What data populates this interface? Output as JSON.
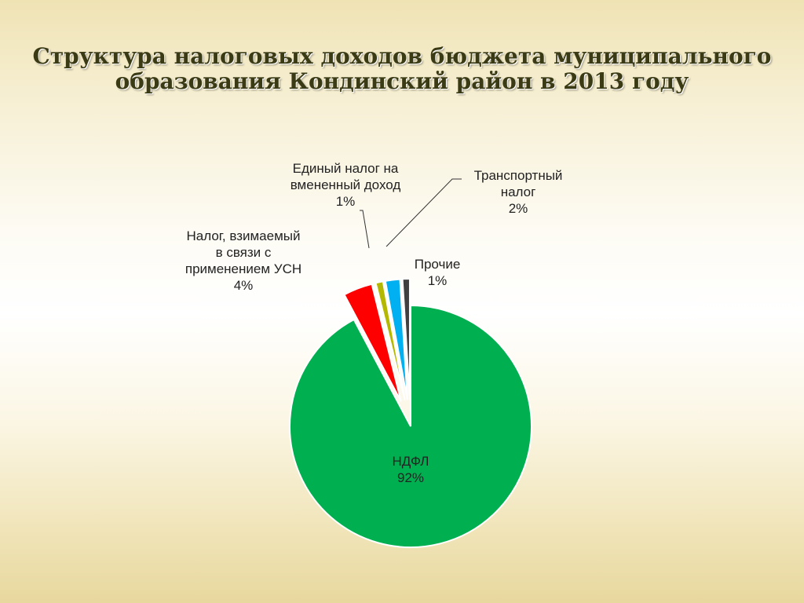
{
  "title_lines": [
    "Структура налоговых доходов бюджета муниципального",
    "образования Кондинский район в 2013 году"
  ],
  "chart_data": {
    "type": "pie",
    "title": "Структура налоговых доходов бюджета муниципального образования Кондинский район в 2013 году",
    "slices": [
      {
        "label_lines": [
          "НДФЛ"
        ],
        "value": 92,
        "value_label": "92%",
        "color": "#00b050"
      },
      {
        "label_lines": [
          "Налог, взимаемый",
          "в связи с",
          "применением УСН"
        ],
        "value": 4,
        "value_label": "4%",
        "color": "#ff0000"
      },
      {
        "label_lines": [
          "Единый налог на",
          "вмененный доход"
        ],
        "value": 1,
        "value_label": "1%",
        "color": "#b5b800"
      },
      {
        "label_lines": [
          "Транспортный",
          "налог"
        ],
        "value": 2,
        "value_label": "2%",
        "color": "#00b0f0"
      },
      {
        "label_lines": [
          "Прочие"
        ],
        "value": 1,
        "value_label": "1%",
        "color": "#404040"
      }
    ]
  }
}
